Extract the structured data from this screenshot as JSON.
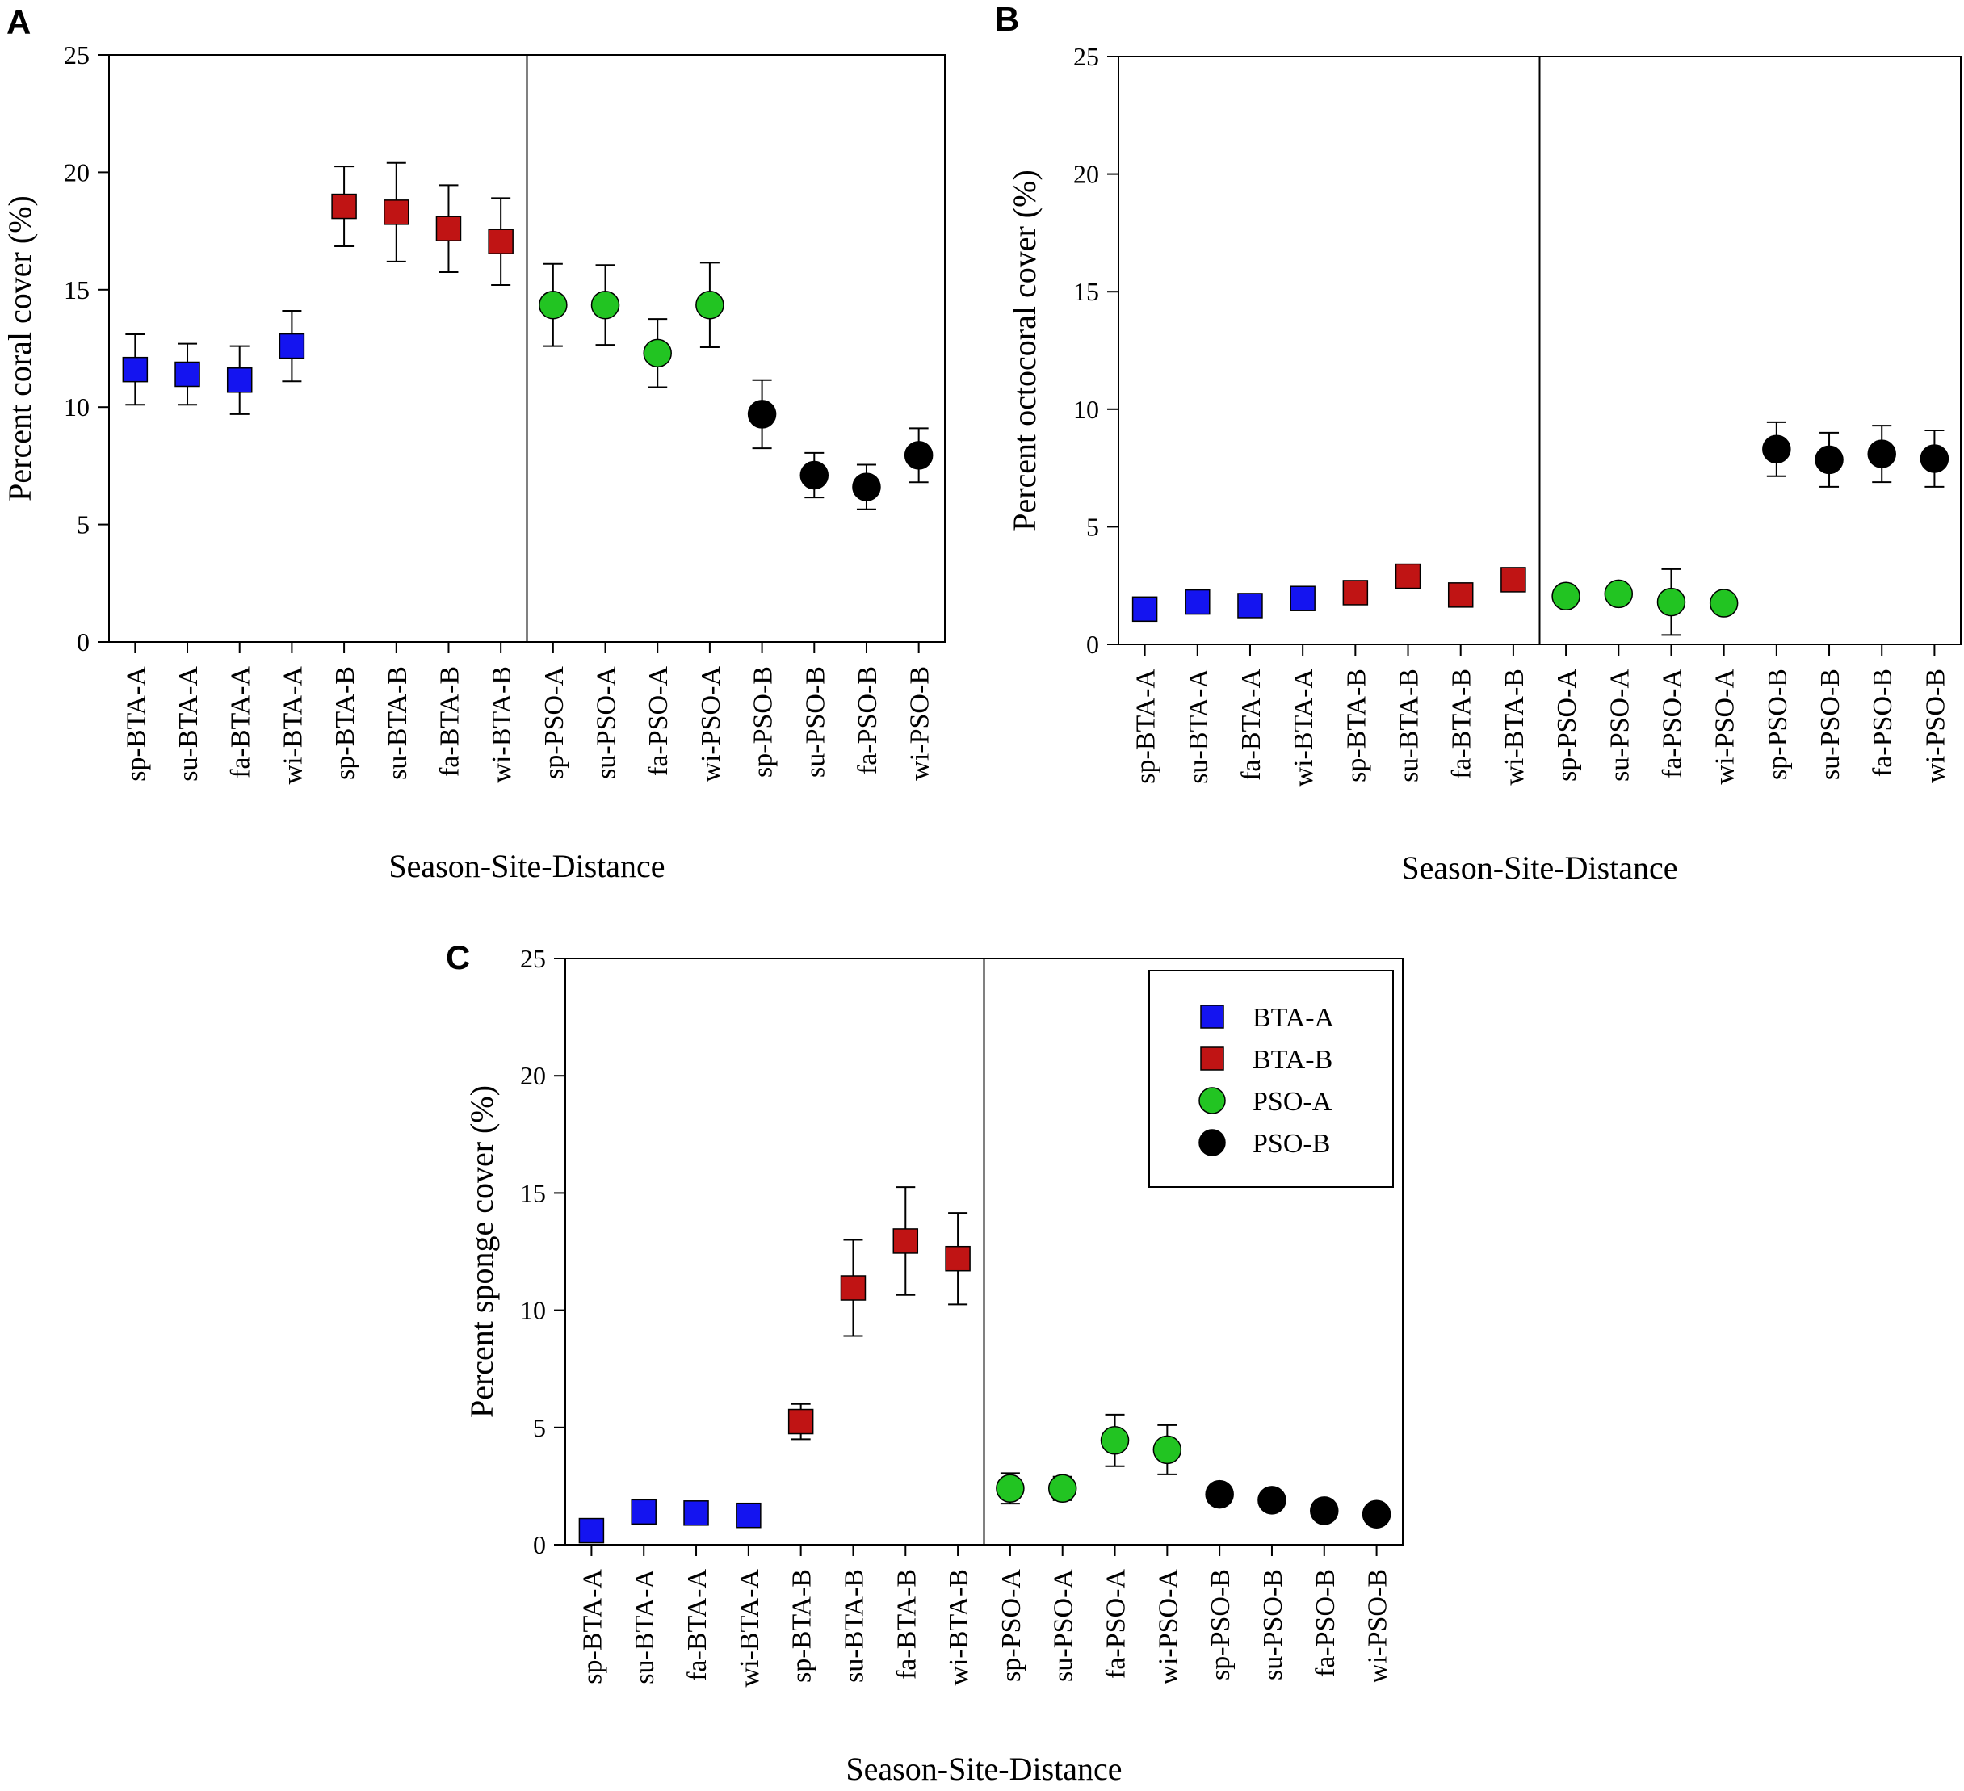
{
  "colors": {
    "BTA-A": "#1414f0",
    "BTA-B": "#c01414",
    "PSO-A": "#22c422",
    "PSO-B": "#000000"
  },
  "chart_data": [
    {
      "panel": "A",
      "type": "scatter",
      "ylabel": "Percent coral cover (%)",
      "xlabel": "Season-Site-Distance",
      "ylim": [
        0,
        25
      ],
      "yticks": [
        "0",
        "5",
        "10",
        "15",
        "20",
        "25"
      ],
      "categories": [
        "sp-BTA-A",
        "su-BTA-A",
        "fa-BTA-A",
        "wi-BTA-A",
        "sp-BTA-B",
        "su-BTA-B",
        "fa-BTA-B",
        "wi-BTA-B",
        "sp-PSO-A",
        "su-PSO-A",
        "fa-PSO-A",
        "wi-PSO-A",
        "sp-PSO-B",
        "su-PSO-B",
        "fa-PSO-B",
        "wi-PSO-B"
      ],
      "groups": [
        "BTA-A",
        "BTA-A",
        "BTA-A",
        "BTA-A",
        "BTA-B",
        "BTA-B",
        "BTA-B",
        "BTA-B",
        "PSO-A",
        "PSO-A",
        "PSO-A",
        "PSO-A",
        "PSO-B",
        "PSO-B",
        "PSO-B",
        "PSO-B"
      ],
      "values": [
        11.6,
        11.4,
        11.15,
        12.6,
        18.55,
        18.3,
        17.6,
        17.05,
        14.35,
        14.35,
        12.3,
        14.35,
        9.7,
        7.1,
        6.6,
        7.95
      ],
      "errors": [
        1.5,
        1.3,
        1.45,
        1.5,
        1.7,
        2.1,
        1.85,
        1.85,
        1.75,
        1.7,
        1.45,
        1.8,
        1.45,
        0.95,
        0.95,
        1.15
      ],
      "divider_after": 8
    },
    {
      "panel": "B",
      "type": "scatter",
      "ylabel": "Percent octocoral cover (%)",
      "xlabel": "Season-Site-Distance",
      "ylim": [
        0,
        25
      ],
      "yticks": [
        "0",
        "5",
        "10",
        "15",
        "20",
        "25"
      ],
      "categories": [
        "sp-BTA-A",
        "su-BTA-A",
        "fa-BTA-A",
        "wi-BTA-A",
        "sp-BTA-B",
        "su-BTA-B",
        "fa-BTA-B",
        "wi-BTA-B",
        "sp-PSO-A",
        "su-PSO-A",
        "fa-PSO-A",
        "wi-PSO-A",
        "sp-PSO-B",
        "su-PSO-B",
        "fa-PSO-B",
        "wi-PSO-B"
      ],
      "groups": [
        "BTA-A",
        "BTA-A",
        "BTA-A",
        "BTA-A",
        "BTA-B",
        "BTA-B",
        "BTA-B",
        "BTA-B",
        "PSO-A",
        "PSO-A",
        "PSO-A",
        "PSO-A",
        "PSO-B",
        "PSO-B",
        "PSO-B",
        "PSO-B"
      ],
      "values": [
        1.5,
        1.8,
        1.65,
        1.95,
        2.2,
        2.9,
        2.1,
        2.75,
        2.05,
        2.15,
        1.8,
        1.75,
        8.3,
        7.85,
        8.1,
        7.9
      ],
      "errors": [
        0,
        0,
        0,
        0,
        0,
        0,
        0,
        0,
        0,
        0,
        1.4,
        0,
        1.15,
        1.15,
        1.2,
        1.2
      ],
      "divider_after": 8
    },
    {
      "panel": "C",
      "type": "scatter",
      "ylabel": "Percent sponge cover (%)",
      "xlabel": "Season-Site-Distance",
      "ylim": [
        0,
        25
      ],
      "yticks": [
        "0",
        "5",
        "10",
        "15",
        "20",
        "25"
      ],
      "categories": [
        "sp-BTA-A",
        "su-BTA-A",
        "fa-BTA-A",
        "wi-BTA-A",
        "sp-BTA-B",
        "su-BTA-B",
        "fa-BTA-B",
        "wi-BTA-B",
        "sp-PSO-A",
        "su-PSO-A",
        "fa-PSO-A",
        "wi-PSO-A",
        "sp-PSO-B",
        "su-PSO-B",
        "fa-PSO-B",
        "wi-PSO-B"
      ],
      "groups": [
        "BTA-A",
        "BTA-A",
        "BTA-A",
        "BTA-A",
        "BTA-B",
        "BTA-B",
        "BTA-B",
        "BTA-B",
        "PSO-A",
        "PSO-A",
        "PSO-A",
        "PSO-A",
        "PSO-B",
        "PSO-B",
        "PSO-B",
        "PSO-B"
      ],
      "values": [
        0.6,
        1.4,
        1.35,
        1.25,
        5.25,
        10.95,
        12.95,
        12.2,
        2.4,
        2.4,
        4.45,
        4.05,
        2.15,
        1.9,
        1.45,
        1.3
      ],
      "errors": [
        0,
        0,
        0,
        0,
        0.75,
        2.05,
        2.3,
        1.95,
        0.65,
        0.5,
        1.1,
        1.05,
        0,
        0,
        0,
        0
      ],
      "divider_after": 8,
      "legend": {
        "position": "top-right",
        "entries": [
          {
            "label": "BTA-A",
            "marker": "square",
            "group": "BTA-A"
          },
          {
            "label": "BTA-B",
            "marker": "square",
            "group": "BTA-B"
          },
          {
            "label": "PSO-A",
            "marker": "circle",
            "group": "PSO-A"
          },
          {
            "label": "PSO-B",
            "marker": "circle",
            "group": "PSO-B"
          }
        ]
      }
    }
  ]
}
